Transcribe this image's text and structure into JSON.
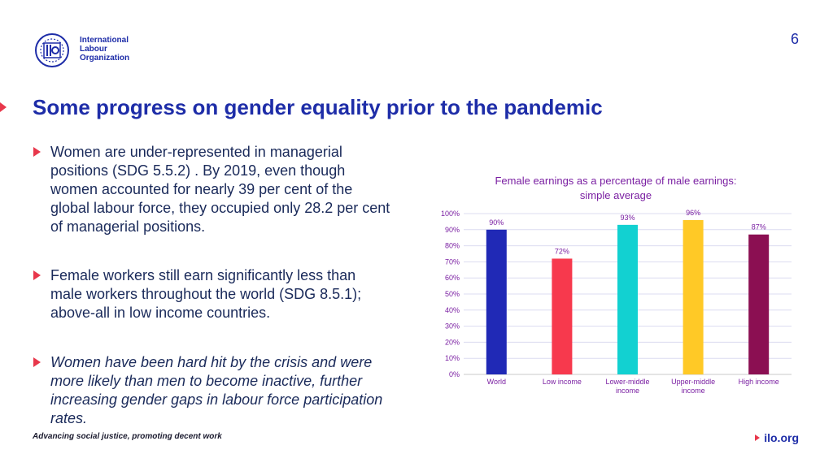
{
  "header": {
    "org_lines": [
      "International",
      "Labour",
      "Organization"
    ],
    "page_number": "6"
  },
  "title": "Some progress on gender equality prior to the pandemic",
  "bullets": [
    "Women are under-represented in managerial positions (SDG 5.5.2) . By 2019, even though women accounted for nearly 39 per cent of the global labour force, they occupied only 28.2 per cent of managerial positions.",
    "Female workers still earn significantly less than male workers throughout the world (SDG 8.5.1); above-all in low income countries.",
    "Women have been hard hit by the crisis and were more likely than men to become inactive, further increasing gender gaps in labour force participation rates."
  ],
  "footer": {
    "tagline": "Advancing social justice, promoting decent work",
    "site": "ilo.org"
  },
  "colors": {
    "brand_blue": "#1e2da8",
    "accent_red": "#e8374b",
    "chart_text": "#7a1fa2"
  },
  "chart_data": {
    "type": "bar",
    "title_lines": [
      "Female earnings as a percentage of male earnings:",
      "simple average"
    ],
    "categories": [
      [
        "World"
      ],
      [
        "Low income"
      ],
      [
        "Lower-middle",
        "income"
      ],
      [
        "Upper-middle",
        "income"
      ],
      [
        "High income"
      ]
    ],
    "values": [
      90,
      72,
      93,
      96,
      87
    ],
    "data_labels": [
      "90%",
      "72%",
      "93%",
      "96%",
      "87%"
    ],
    "bar_colors": [
      "#2029b6",
      "#f7394d",
      "#12d1d1",
      "#ffc926",
      "#8b0f52"
    ],
    "yticks": [
      "0%",
      "10%",
      "20%",
      "30%",
      "40%",
      "50%",
      "60%",
      "70%",
      "80%",
      "90%",
      "100%"
    ],
    "ylim": [
      0,
      100
    ],
    "grid": true,
    "legend": "none"
  }
}
